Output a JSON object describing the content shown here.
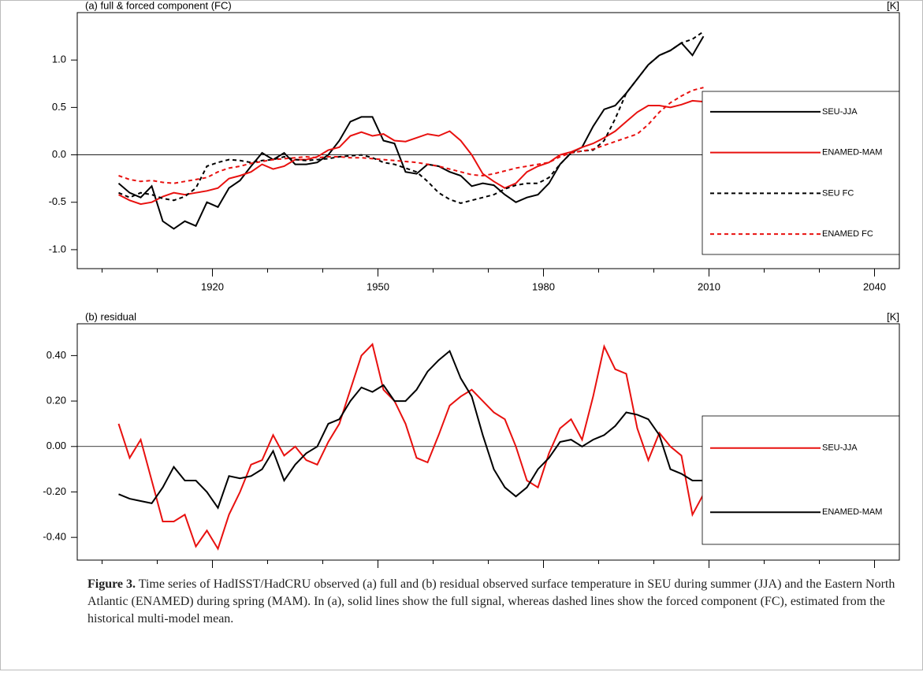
{
  "chart_data": [
    {
      "type": "line",
      "title": "(a) full & forced component (FC)",
      "units": "[K]",
      "x": [
        1903,
        1905,
        1907,
        1909,
        1911,
        1913,
        1915,
        1917,
        1919,
        1921,
        1923,
        1925,
        1927,
        1929,
        1931,
        1933,
        1935,
        1937,
        1939,
        1941,
        1943,
        1945,
        1947,
        1949,
        1951,
        1953,
        1955,
        1957,
        1959,
        1961,
        1963,
        1965,
        1967,
        1969,
        1971,
        1973,
        1975,
        1977,
        1979,
        1981,
        1983,
        1985,
        1987,
        1989,
        1991,
        1993,
        1995,
        1997,
        1999,
        2001,
        2003,
        2005,
        2007,
        2009
      ],
      "xlim": [
        1895.5,
        2044.5
      ],
      "xticks": [
        1920,
        1950,
        1980,
        2010,
        2040
      ],
      "xminorticks": [
        1900,
        1910,
        1930,
        1940,
        1960,
        1970,
        1990,
        2000,
        2020,
        2030
      ],
      "ylim": [
        -1.2,
        1.5
      ],
      "yticks": [
        {
          "value": -1,
          "label": "-1.0"
        },
        -0.5,
        {
          "value": 0,
          "label": "0.0"
        },
        0.5,
        {
          "value": 1,
          "label": "1.0"
        }
      ],
      "hline": 0,
      "legend": "right",
      "series": [
        {
          "name": "SEU-JJA",
          "color": "#000000",
          "dashed": false,
          "values": [
            -0.3,
            -0.4,
            -0.45,
            -0.33,
            -0.7,
            -0.78,
            -0.7,
            -0.75,
            -0.5,
            -0.55,
            -0.35,
            -0.27,
            -0.12,
            0.02,
            -0.05,
            0.02,
            -0.1,
            -0.1,
            -0.08,
            0.0,
            0.15,
            0.35,
            0.4,
            0.4,
            0.15,
            0.12,
            -0.18,
            -0.2,
            -0.1,
            -0.12,
            -0.18,
            -0.22,
            -0.33,
            -0.3,
            -0.32,
            -0.42,
            -0.5,
            -0.45,
            -0.42,
            -0.3,
            -0.1,
            0.02,
            0.08,
            0.3,
            0.48,
            0.52,
            0.65,
            0.8,
            0.95,
            1.05,
            1.1,
            1.18,
            1.05,
            1.25
          ]
        },
        {
          "name": "ENAMED-MAM",
          "color": "#e8110f",
          "dashed": false,
          "values": [
            -0.42,
            -0.48,
            -0.52,
            -0.5,
            -0.44,
            -0.4,
            -0.42,
            -0.4,
            -0.38,
            -0.35,
            -0.25,
            -0.22,
            -0.18,
            -0.1,
            -0.15,
            -0.12,
            -0.05,
            -0.05,
            -0.02,
            0.05,
            0.08,
            0.2,
            0.24,
            0.2,
            0.22,
            0.15,
            0.14,
            0.18,
            0.22,
            0.2,
            0.25,
            0.15,
            0.0,
            -0.2,
            -0.28,
            -0.35,
            -0.3,
            -0.18,
            -0.12,
            -0.08,
            0.0,
            0.03,
            0.08,
            0.12,
            0.18,
            0.25,
            0.35,
            0.45,
            0.52,
            0.52,
            0.5,
            0.53,
            0.57,
            0.56
          ]
        },
        {
          "name": "SEU FC",
          "color": "#000000",
          "dashed": true,
          "values": [
            -0.4,
            -0.45,
            -0.4,
            -0.42,
            -0.46,
            -0.48,
            -0.44,
            -0.35,
            -0.12,
            -0.08,
            -0.05,
            -0.06,
            -0.08,
            -0.06,
            -0.05,
            -0.02,
            -0.05,
            -0.06,
            -0.05,
            -0.04,
            -0.02,
            -0.01,
            0.0,
            -0.03,
            -0.08,
            -0.1,
            -0.14,
            -0.18,
            -0.28,
            -0.4,
            -0.47,
            -0.51,
            -0.48,
            -0.45,
            -0.42,
            -0.36,
            -0.32,
            -0.3,
            -0.3,
            -0.24,
            -0.1,
            0.02,
            0.04,
            0.05,
            0.15,
            0.38,
            0.65,
            0.8,
            0.95,
            1.05,
            1.1,
            1.18,
            1.22,
            1.3
          ]
        },
        {
          "name": "ENAMED FC",
          "color": "#e8110f",
          "dashed": true,
          "values": [
            -0.22,
            -0.26,
            -0.28,
            -0.27,
            -0.29,
            -0.3,
            -0.28,
            -0.26,
            -0.24,
            -0.18,
            -0.14,
            -0.12,
            -0.09,
            -0.07,
            -0.05,
            -0.04,
            -0.03,
            -0.02,
            -0.03,
            -0.02,
            -0.02,
            -0.03,
            -0.03,
            -0.04,
            -0.05,
            -0.06,
            -0.07,
            -0.08,
            -0.1,
            -0.12,
            -0.15,
            -0.18,
            -0.21,
            -0.22,
            -0.2,
            -0.17,
            -0.14,
            -0.12,
            -0.1,
            -0.08,
            -0.02,
            0.02,
            0.04,
            0.06,
            0.1,
            0.14,
            0.18,
            0.22,
            0.32,
            0.45,
            0.55,
            0.62,
            0.68,
            0.71
          ]
        }
      ]
    },
    {
      "type": "line",
      "title": "(b) residual",
      "units": "[K]",
      "x": [
        1903,
        1905,
        1907,
        1909,
        1911,
        1913,
        1915,
        1917,
        1919,
        1921,
        1923,
        1925,
        1927,
        1929,
        1931,
        1933,
        1935,
        1937,
        1939,
        1941,
        1943,
        1945,
        1947,
        1949,
        1951,
        1953,
        1955,
        1957,
        1959,
        1961,
        1963,
        1965,
        1967,
        1969,
        1971,
        1973,
        1975,
        1977,
        1979,
        1981,
        1983,
        1985,
        1987,
        1989,
        1991,
        1993,
        1995,
        1997,
        1999,
        2001,
        2003,
        2005,
        2007,
        2009
      ],
      "xlim": [
        1895.5,
        2044.5
      ],
      "xticks": [
        1920,
        1950,
        1980,
        2010,
        2040
      ],
      "xminorticks": [
        1900,
        1910,
        1930,
        1940,
        1960,
        1970,
        1990,
        2000,
        2020,
        2030
      ],
      "ylim": [
        -0.5,
        0.54
      ],
      "yticks": [
        {
          "value": -0.4,
          "label": "-0.40"
        },
        {
          "value": -0.2,
          "label": "-0.20"
        },
        {
          "value": 0,
          "label": "0.00"
        },
        {
          "value": 0.2,
          "label": "0.20"
        },
        {
          "value": 0.4,
          "label": "0.40"
        }
      ],
      "hline": 0,
      "legend": "right",
      "series": [
        {
          "name": "SEU-JJA",
          "color": "#e8110f",
          "dashed": false,
          "values": [
            0.1,
            -0.05,
            0.03,
            -0.15,
            -0.33,
            -0.33,
            -0.3,
            -0.44,
            -0.37,
            -0.45,
            -0.3,
            -0.2,
            -0.08,
            -0.06,
            0.05,
            -0.04,
            0.0,
            -0.06,
            -0.08,
            0.02,
            0.1,
            0.25,
            0.4,
            0.45,
            0.25,
            0.2,
            0.1,
            -0.05,
            -0.07,
            0.05,
            0.18,
            0.22,
            0.25,
            0.2,
            0.15,
            0.12,
            0.0,
            -0.15,
            -0.18,
            -0.03,
            0.08,
            0.12,
            0.03,
            0.22,
            0.44,
            0.34,
            0.32,
            0.08,
            -0.06,
            0.06,
            0.0,
            -0.04,
            -0.3,
            -0.21
          ]
        },
        {
          "name": "ENAMED-MAM",
          "color": "#000000",
          "dashed": false,
          "values": [
            -0.21,
            -0.23,
            -0.24,
            -0.25,
            -0.18,
            -0.09,
            -0.15,
            -0.15,
            -0.2,
            -0.27,
            -0.13,
            -0.14,
            -0.13,
            -0.1,
            -0.02,
            -0.15,
            -0.08,
            -0.03,
            0.0,
            0.1,
            0.12,
            0.2,
            0.26,
            0.24,
            0.27,
            0.2,
            0.2,
            0.25,
            0.33,
            0.38,
            0.42,
            0.3,
            0.22,
            0.05,
            -0.1,
            -0.18,
            -0.22,
            -0.18,
            -0.1,
            -0.05,
            0.02,
            0.03,
            0.0,
            0.03,
            0.05,
            0.09,
            0.15,
            0.14,
            0.12,
            0.05,
            -0.1,
            -0.12,
            -0.15,
            -0.15
          ]
        }
      ]
    }
  ],
  "caption": {
    "label": "Figure 3.",
    "text": " Time series of HadISST/HadCRU observed (a) full and (b) residual observed surface temperature in SEU during summer (JJA) and the Eastern North Atlantic (ENAMED) during spring (MAM). In (a), solid lines show the full signal, whereas dashed lines show the forced component (FC), estimated from the historical multi-model mean."
  }
}
